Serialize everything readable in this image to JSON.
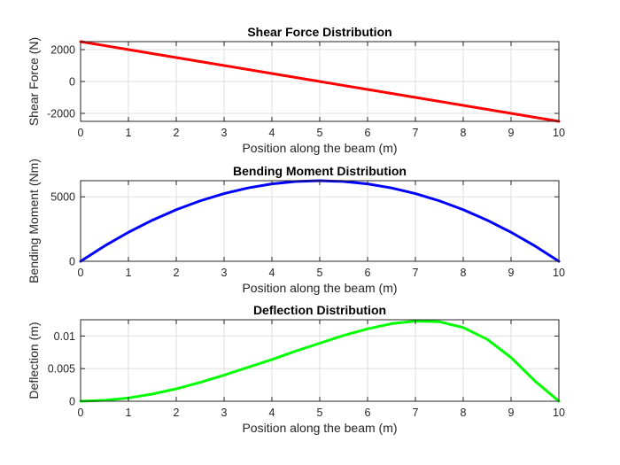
{
  "chart_data": [
    {
      "type": "line",
      "title": "Shear Force Distribution",
      "xlabel": "Position along the beam (m)",
      "ylabel": "Shear Force (N)",
      "xlim": [
        0,
        10
      ],
      "ylim": [
        -2500,
        2500
      ],
      "xticks": [
        0,
        1,
        2,
        3,
        4,
        5,
        6,
        7,
        8,
        9,
        10
      ],
      "xtick_labels": [
        "0",
        "1",
        "2",
        "3",
        "4",
        "5",
        "6",
        "7",
        "8",
        "9",
        "10"
      ],
      "yticks": [
        -2000,
        0,
        2000
      ],
      "ytick_labels": [
        "-2000",
        "0",
        "2000"
      ],
      "grid": true,
      "series": [
        {
          "color": "#ff0000",
          "x": [
            0,
            1,
            2,
            3,
            4,
            5,
            6,
            7,
            8,
            9,
            10
          ],
          "y": [
            2500,
            2000,
            1500,
            1000,
            500,
            0,
            -500,
            -1000,
            -1500,
            -2000,
            -2500
          ]
        }
      ]
    },
    {
      "type": "line",
      "title": "Bending Moment Distribution",
      "xlabel": "Position along the beam (m)",
      "ylabel": "Bending Moment (Nm)",
      "xlim": [
        0,
        10
      ],
      "ylim": [
        0,
        6250
      ],
      "xticks": [
        0,
        1,
        2,
        3,
        4,
        5,
        6,
        7,
        8,
        9,
        10
      ],
      "xtick_labels": [
        "0",
        "1",
        "2",
        "3",
        "4",
        "5",
        "6",
        "7",
        "8",
        "9",
        "10"
      ],
      "yticks": [
        0,
        5000
      ],
      "ytick_labels": [
        "0",
        "5000"
      ],
      "grid": true,
      "series": [
        {
          "color": "#0000ff",
          "x": [
            0,
            0.5,
            1,
            1.5,
            2,
            2.5,
            3,
            3.5,
            4,
            4.5,
            5,
            5.5,
            6,
            6.5,
            7,
            7.5,
            8,
            8.5,
            9,
            9.5,
            10
          ],
          "y": [
            0,
            1187.5,
            2250,
            3187.5,
            4000,
            4687.5,
            5250,
            5687.5,
            6000,
            6187.5,
            6250,
            6187.5,
            6000,
            5687.5,
            5250,
            4687.5,
            4000,
            3187.5,
            2250,
            1187.5,
            0
          ]
        }
      ]
    },
    {
      "type": "line",
      "title": "Deflection Distribution",
      "xlabel": "Position along the beam (m)",
      "ylabel": "Deflection (m)",
      "xlim": [
        0,
        10
      ],
      "ylim": [
        0,
        0.0125
      ],
      "xticks": [
        0,
        1,
        2,
        3,
        4,
        5,
        6,
        7,
        8,
        9,
        10
      ],
      "xtick_labels": [
        "0",
        "1",
        "2",
        "3",
        "4",
        "5",
        "6",
        "7",
        "8",
        "9",
        "10"
      ],
      "yticks": [
        0,
        0.005,
        0.01
      ],
      "ytick_labels": [
        "0",
        "0.005",
        "0.01"
      ],
      "grid": true,
      "series": [
        {
          "color": "#00ff00",
          "x": [
            0,
            0.5,
            1,
            1.5,
            2,
            2.5,
            3,
            3.5,
            4,
            4.5,
            5,
            5.5,
            6,
            6.5,
            7,
            7.5,
            8,
            8.5,
            9,
            9.5,
            10
          ],
          "y": [
            0,
            0.00013,
            0.0005,
            0.0011,
            0.0019,
            0.0029,
            0.004,
            0.0052,
            0.0064,
            0.0077,
            0.0089,
            0.0101,
            0.0111,
            0.0119,
            0.0123,
            0.0122,
            0.0113,
            0.0095,
            0.0067,
            0.0031,
            0.0
          ]
        }
      ]
    }
  ]
}
